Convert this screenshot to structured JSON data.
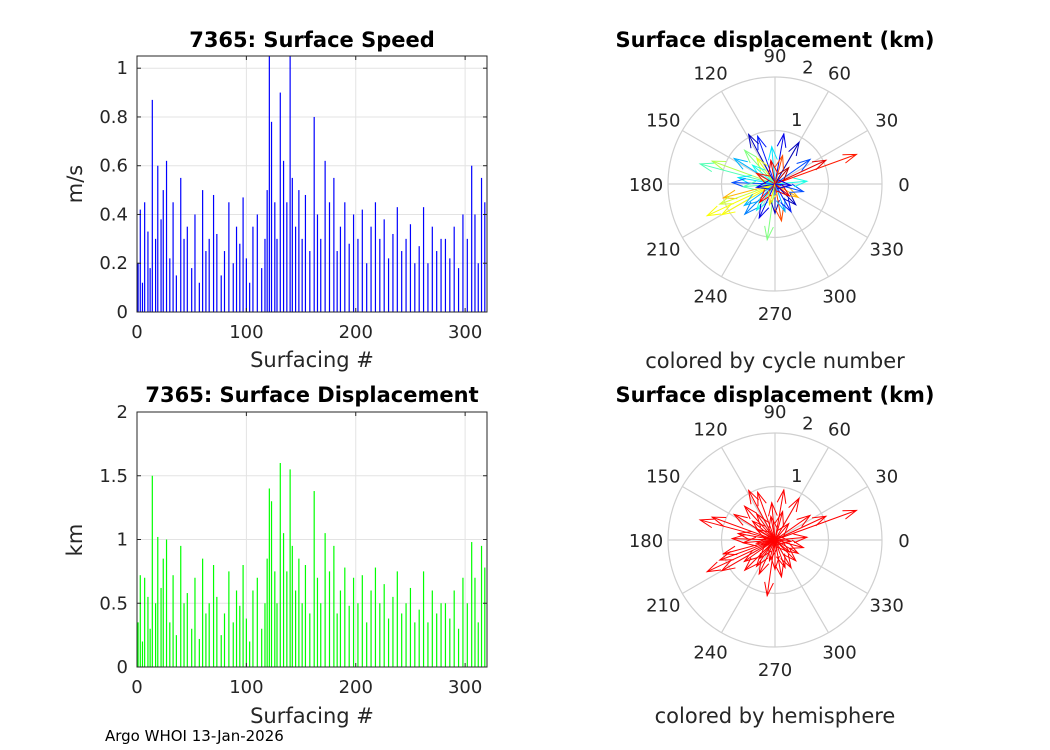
{
  "float_id": "7365",
  "footer": "Argo WHOI 13-Jan-2026",
  "colors": {
    "speed_bars": "#0000ff",
    "displacement_bars": "#00ff00",
    "hemisphere_arrows": "#ff0000"
  },
  "chart_data": [
    {
      "type": "bar",
      "title": "7365: Surface Speed",
      "xlabel": "Surfacing #",
      "ylabel": "m/s",
      "xlim": [
        0,
        320
      ],
      "ylim": [
        0,
        1.05
      ],
      "xticks": [
        0,
        100,
        200,
        300
      ],
      "xtick_labels": [
        "0",
        "100",
        "200",
        "300"
      ],
      "yticks": [
        0,
        0.2,
        0.4,
        0.6,
        0.8,
        1
      ],
      "ytick_labels": [
        "0",
        "0.2",
        "0.4",
        "0.6",
        "0.8",
        "1"
      ],
      "grid": true,
      "x": [
        1,
        3,
        5,
        7,
        10,
        12,
        14,
        17,
        19,
        22,
        24,
        27,
        30,
        33,
        36,
        40,
        43,
        46,
        50,
        53,
        57,
        60,
        63,
        66,
        70,
        73,
        77,
        80,
        84,
        88,
        91,
        94,
        97,
        100,
        103,
        106,
        110,
        114,
        117,
        119,
        121,
        123,
        126,
        128,
        131,
        134,
        137,
        140,
        142,
        145,
        148,
        151,
        154,
        158,
        162,
        165,
        168,
        172,
        176,
        180,
        183,
        186,
        190,
        194,
        198,
        202,
        206,
        210,
        214,
        218,
        222,
        226,
        230,
        234,
        238,
        242,
        246,
        250,
        254,
        258,
        262,
        266,
        270,
        274,
        278,
        282,
        286,
        290,
        294,
        298,
        302,
        306,
        309,
        312,
        315,
        318
      ],
      "values": [
        0.2,
        0.42,
        0.12,
        0.45,
        0.33,
        0.18,
        0.87,
        0.3,
        0.6,
        0.38,
        0.5,
        0.62,
        0.22,
        0.45,
        0.15,
        0.55,
        0.3,
        0.35,
        0.18,
        0.4,
        0.12,
        0.5,
        0.25,
        0.3,
        0.48,
        0.32,
        0.15,
        0.25,
        0.45,
        0.2,
        0.35,
        0.28,
        0.47,
        0.22,
        0.12,
        0.35,
        0.4,
        0.18,
        0.3,
        0.5,
        1.06,
        0.78,
        0.45,
        0.3,
        0.9,
        0.62,
        0.45,
        1.05,
        0.55,
        0.35,
        0.5,
        0.3,
        0.48,
        0.25,
        0.8,
        0.4,
        0.3,
        0.62,
        0.45,
        0.55,
        0.25,
        0.35,
        0.45,
        0.28,
        0.4,
        0.3,
        0.42,
        0.2,
        0.35,
        0.45,
        0.3,
        0.38,
        0.22,
        0.32,
        0.43,
        0.25,
        0.3,
        0.36,
        0.2,
        0.27,
        0.43,
        0.2,
        0.35,
        0.25,
        0.3,
        0.3,
        0.22,
        0.35,
        0.18,
        0.4,
        0.3,
        0.6,
        0.4,
        0.2,
        0.55,
        0.45
      ]
    },
    {
      "type": "bar",
      "title": "7365: Surface Displacement",
      "xlabel": "Surfacing #",
      "ylabel": "km",
      "xlim": [
        0,
        320
      ],
      "ylim": [
        0,
        2
      ],
      "xticks": [
        0,
        100,
        200,
        300
      ],
      "xtick_labels": [
        "0",
        "100",
        "200",
        "300"
      ],
      "yticks": [
        0,
        0.5,
        1,
        1.5,
        2
      ],
      "ytick_labels": [
        "0",
        "0.5",
        "1",
        "1.5",
        "2"
      ],
      "grid": true,
      "x": [
        1,
        3,
        5,
        7,
        10,
        12,
        14,
        17,
        19,
        22,
        24,
        27,
        30,
        33,
        36,
        40,
        43,
        46,
        50,
        53,
        57,
        60,
        63,
        66,
        70,
        73,
        77,
        80,
        84,
        88,
        91,
        94,
        97,
        100,
        103,
        106,
        110,
        114,
        117,
        119,
        121,
        123,
        126,
        128,
        131,
        134,
        137,
        140,
        142,
        145,
        148,
        151,
        154,
        158,
        162,
        165,
        168,
        172,
        176,
        180,
        183,
        186,
        190,
        194,
        198,
        202,
        206,
        210,
        214,
        218,
        222,
        226,
        230,
        234,
        238,
        242,
        246,
        250,
        254,
        258,
        262,
        266,
        270,
        274,
        278,
        282,
        286,
        290,
        294,
        298,
        302,
        306,
        309,
        312,
        315,
        318
      ],
      "values": [
        0.35,
        0.72,
        0.2,
        0.7,
        0.55,
        0.3,
        1.5,
        0.5,
        1.02,
        0.62,
        0.85,
        1.0,
        0.35,
        0.72,
        0.25,
        0.95,
        0.5,
        0.58,
        0.3,
        0.7,
        0.22,
        0.85,
        0.42,
        0.5,
        0.8,
        0.55,
        0.25,
        0.42,
        0.75,
        0.35,
        0.6,
        0.48,
        0.8,
        0.38,
        0.2,
        0.6,
        0.7,
        0.3,
        0.5,
        0.85,
        1.4,
        1.3,
        0.75,
        0.5,
        1.6,
        1.05,
        0.75,
        1.55,
        0.95,
        0.6,
        0.85,
        0.5,
        0.8,
        0.42,
        1.38,
        0.7,
        0.5,
        1.05,
        0.75,
        0.95,
        0.42,
        0.6,
        0.78,
        0.48,
        0.7,
        0.5,
        0.72,
        0.35,
        0.6,
        0.78,
        0.5,
        0.65,
        0.38,
        0.55,
        0.75,
        0.42,
        0.5,
        0.62,
        0.35,
        0.45,
        0.75,
        0.35,
        0.6,
        0.42,
        0.5,
        0.5,
        0.38,
        0.6,
        0.3,
        0.7,
        0.5,
        0.98,
        0.7,
        0.35,
        0.95,
        0.78
      ]
    },
    {
      "type": "polar",
      "title": "Surface displacement (km)",
      "subtitle": "colored by cycle number",
      "rmax": 2,
      "rticks": [
        1,
        2
      ],
      "rtick_labels": [
        "1",
        "2"
      ],
      "theta_labels": [
        "0",
        "30",
        "60",
        "90",
        "120",
        "150",
        "180",
        "210",
        "240",
        "270",
        "300",
        "330"
      ],
      "colormap": [
        "#00008f",
        "#0000ff",
        "#0080ff",
        "#00ffff",
        "#80ff80",
        "#ffff00",
        "#ff8000",
        "#ff0000",
        "#800000"
      ],
      "vectors": [
        {
          "theta": 20,
          "r": 1.62,
          "c": 0.85
        },
        {
          "theta": 25,
          "r": 1.05,
          "c": 0.9
        },
        {
          "theta": 35,
          "r": 0.8,
          "c": 0.2
        },
        {
          "theta": 60,
          "r": 0.9,
          "c": 0.05
        },
        {
          "theta": 80,
          "r": 0.95,
          "c": 0.1
        },
        {
          "theta": 95,
          "r": 0.7,
          "c": 0.35
        },
        {
          "theta": 110,
          "r": 0.95,
          "c": 0.15
        },
        {
          "theta": 118,
          "r": 1.05,
          "c": 0.05
        },
        {
          "theta": 125,
          "r": 0.6,
          "c": 0.6
        },
        {
          "theta": 132,
          "r": 0.85,
          "c": 0.5
        },
        {
          "theta": 140,
          "r": 0.55,
          "c": 0.4
        },
        {
          "theta": 148,
          "r": 0.9,
          "c": 0.3
        },
        {
          "theta": 160,
          "r": 1.25,
          "c": 0.55
        },
        {
          "theta": 165,
          "r": 1.45,
          "c": 0.45
        },
        {
          "theta": 170,
          "r": 0.7,
          "c": 0.35
        },
        {
          "theta": 178,
          "r": 0.8,
          "c": 0.2
        },
        {
          "theta": 185,
          "r": 0.6,
          "c": 0.45
        },
        {
          "theta": 195,
          "r": 1.0,
          "c": 0.7
        },
        {
          "theta": 200,
          "r": 1.1,
          "c": 0.58
        },
        {
          "theta": 205,
          "r": 1.4,
          "c": 0.62
        },
        {
          "theta": 210,
          "r": 1.15,
          "c": 0.62
        },
        {
          "theta": 215,
          "r": 0.7,
          "c": 0.3
        },
        {
          "theta": 225,
          "r": 0.8,
          "c": 0.25
        },
        {
          "theta": 235,
          "r": 0.6,
          "c": 0.4
        },
        {
          "theta": 245,
          "r": 0.7,
          "c": 0.1
        },
        {
          "theta": 262,
          "r": 1.05,
          "c": 0.5
        },
        {
          "theta": 270,
          "r": 0.55,
          "c": 0.05
        },
        {
          "theta": 280,
          "r": 0.7,
          "c": 0.8
        },
        {
          "theta": 290,
          "r": 0.55,
          "c": 0.3
        },
        {
          "theta": 300,
          "r": 0.6,
          "c": 0.15
        },
        {
          "theta": 315,
          "r": 0.55,
          "c": 0.05
        },
        {
          "theta": 330,
          "r": 0.5,
          "c": 0.7
        },
        {
          "theta": 345,
          "r": 0.55,
          "c": 0.2
        },
        {
          "theta": 5,
          "r": 0.6,
          "c": 0.4
        },
        {
          "theta": 50,
          "r": 0.4,
          "c": 0.95
        },
        {
          "theta": 75,
          "r": 0.55,
          "c": 0.8
        },
        {
          "theta": 100,
          "r": 0.45,
          "c": 0.9
        },
        {
          "theta": 150,
          "r": 0.4,
          "c": 0.85
        },
        {
          "theta": 190,
          "r": 0.35,
          "c": 0.1
        },
        {
          "theta": 230,
          "r": 0.45,
          "c": 0.88
        },
        {
          "theta": 255,
          "r": 0.4,
          "c": 0.65
        },
        {
          "theta": 320,
          "r": 0.35,
          "c": 0.9
        },
        {
          "theta": 355,
          "r": 0.3,
          "c": 0.1
        }
      ]
    },
    {
      "type": "polar",
      "title": "Surface displacement (km)",
      "subtitle": "colored by hemisphere",
      "rmax": 2,
      "rticks": [
        1,
        2
      ],
      "rtick_labels": [
        "1",
        "2"
      ],
      "theta_labels": [
        "0",
        "30",
        "60",
        "90",
        "120",
        "150",
        "180",
        "210",
        "240",
        "270",
        "300",
        "330"
      ],
      "color": "#ff0000",
      "vectors": [
        {
          "theta": 20,
          "r": 1.62
        },
        {
          "theta": 25,
          "r": 1.05
        },
        {
          "theta": 35,
          "r": 0.8
        },
        {
          "theta": 60,
          "r": 0.9
        },
        {
          "theta": 80,
          "r": 0.95
        },
        {
          "theta": 95,
          "r": 0.7
        },
        {
          "theta": 110,
          "r": 0.95
        },
        {
          "theta": 118,
          "r": 1.05
        },
        {
          "theta": 125,
          "r": 0.6
        },
        {
          "theta": 132,
          "r": 0.85
        },
        {
          "theta": 140,
          "r": 0.55
        },
        {
          "theta": 148,
          "r": 0.9
        },
        {
          "theta": 160,
          "r": 1.25
        },
        {
          "theta": 165,
          "r": 1.45
        },
        {
          "theta": 170,
          "r": 0.7
        },
        {
          "theta": 178,
          "r": 0.8
        },
        {
          "theta": 185,
          "r": 0.6
        },
        {
          "theta": 195,
          "r": 1.0
        },
        {
          "theta": 200,
          "r": 1.1
        },
        {
          "theta": 205,
          "r": 1.4
        },
        {
          "theta": 210,
          "r": 1.15
        },
        {
          "theta": 215,
          "r": 0.7
        },
        {
          "theta": 225,
          "r": 0.8
        },
        {
          "theta": 235,
          "r": 0.6
        },
        {
          "theta": 245,
          "r": 0.7
        },
        {
          "theta": 262,
          "r": 1.05
        },
        {
          "theta": 270,
          "r": 0.55
        },
        {
          "theta": 280,
          "r": 0.7
        },
        {
          "theta": 290,
          "r": 0.55
        },
        {
          "theta": 300,
          "r": 0.6
        },
        {
          "theta": 315,
          "r": 0.55
        },
        {
          "theta": 330,
          "r": 0.5
        },
        {
          "theta": 345,
          "r": 0.55
        },
        {
          "theta": 5,
          "r": 0.6
        },
        {
          "theta": 50,
          "r": 0.4
        },
        {
          "theta": 75,
          "r": 0.55
        },
        {
          "theta": 100,
          "r": 0.45
        },
        {
          "theta": 150,
          "r": 0.4
        },
        {
          "theta": 190,
          "r": 0.35
        },
        {
          "theta": 230,
          "r": 0.45
        },
        {
          "theta": 255,
          "r": 0.4
        },
        {
          "theta": 320,
          "r": 0.35
        },
        {
          "theta": 355,
          "r": 0.3
        }
      ]
    }
  ]
}
